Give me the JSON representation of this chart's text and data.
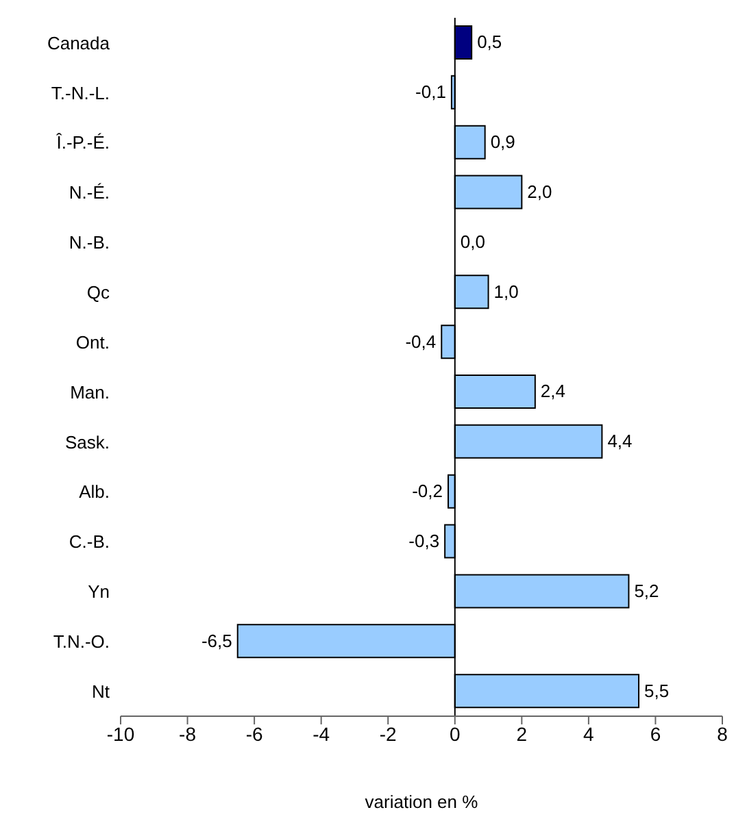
{
  "chart_data": {
    "type": "bar",
    "orientation": "horizontal",
    "xlabel": "variation en %",
    "categories": [
      "Canada",
      "T.-N.-L.",
      "Î.-P.-É.",
      "N.-É.",
      "N.-B.",
      "Qc",
      "Ont.",
      "Man.",
      "Sask.",
      "Alb.",
      "C.-B.",
      "Yn",
      "T.N.-O.",
      "Nt"
    ],
    "values": [
      0.5,
      -0.1,
      0.9,
      2.0,
      0.0,
      1.0,
      -0.4,
      2.4,
      4.4,
      -0.2,
      -0.3,
      5.2,
      -6.5,
      5.5
    ],
    "colors": [
      "#000080",
      "#99ccff",
      "#99ccff",
      "#99ccff",
      "#99ccff",
      "#99ccff",
      "#99ccff",
      "#99ccff",
      "#99ccff",
      "#99ccff",
      "#99ccff",
      "#99ccff",
      "#99ccff",
      "#99ccff"
    ],
    "value_labels": [
      "0,5",
      "-0,1",
      "0,9",
      "2,0",
      "0,0",
      "1,0",
      "-0,4",
      "2,4",
      "4,4",
      "-0,2",
      "-0,3",
      "5,2",
      "-6,5",
      "5,5"
    ],
    "xlim": [
      -10,
      8
    ],
    "xticks": [
      -10,
      -8,
      -6,
      -4,
      -2,
      0,
      2,
      4,
      6,
      8
    ]
  }
}
